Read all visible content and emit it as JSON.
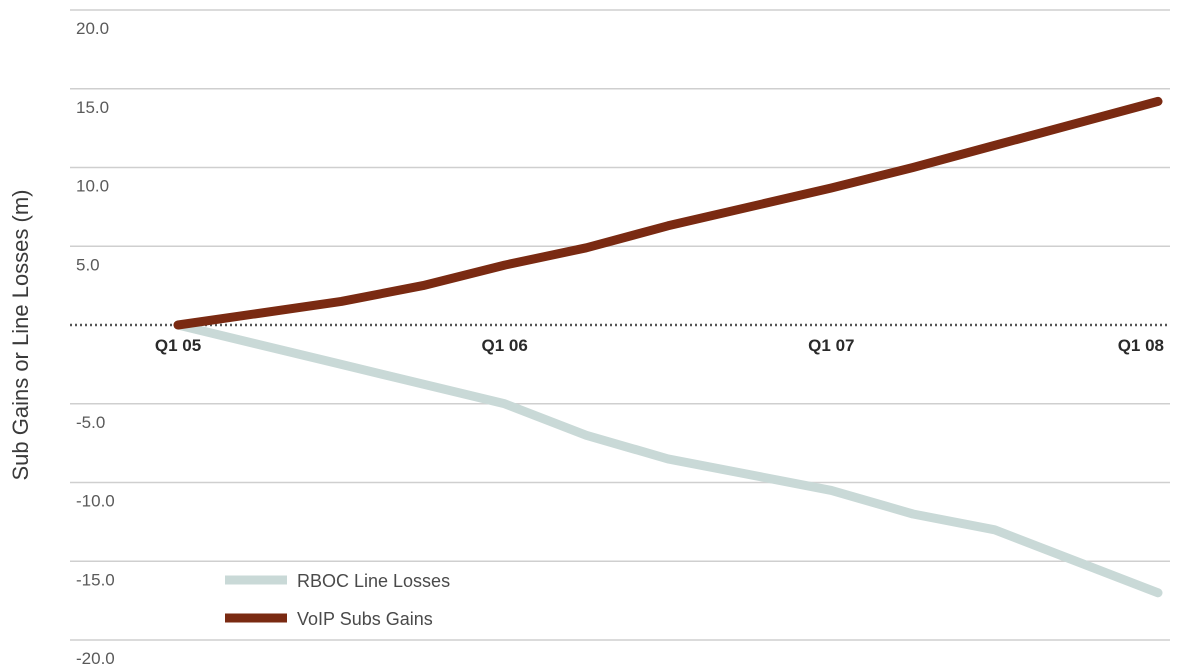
{
  "chart_data": {
    "type": "line",
    "ylabel": "Sub Gains or Line Losses (m)",
    "xlabel": "",
    "ylim": [
      -20,
      20
    ],
    "y_ticks": [
      "20.0",
      "15.0",
      "10.0",
      "5.0",
      "-5.0",
      "-10.0",
      "-15.0",
      "-20.0"
    ],
    "x_ticks": [
      "Q1 05",
      "Q1 06",
      "Q1 07",
      "Q1 08"
    ],
    "grid": true,
    "legend_position": "bottom-left",
    "series": [
      {
        "name": "RBOC Line Losses",
        "color": "#c9d9d7",
        "points": [
          {
            "x": 0,
            "y": 0
          },
          {
            "x": 0.5,
            "y": -2.5
          },
          {
            "x": 1.0,
            "y": -5.0
          },
          {
            "x": 1.25,
            "y": -7.0
          },
          {
            "x": 1.5,
            "y": -8.5
          },
          {
            "x": 2.0,
            "y": -10.5
          },
          {
            "x": 2.25,
            "y": -12.0
          },
          {
            "x": 2.5,
            "y": -13.0
          },
          {
            "x": 2.75,
            "y": -15.0
          },
          {
            "x": 3.0,
            "y": -17.0
          }
        ]
      },
      {
        "name": "VoIP Subs Gains",
        "color": "#7a2a12",
        "points": [
          {
            "x": 0,
            "y": 0
          },
          {
            "x": 0.5,
            "y": 1.5
          },
          {
            "x": 0.75,
            "y": 2.5
          },
          {
            "x": 1.0,
            "y": 3.8
          },
          {
            "x": 1.25,
            "y": 4.9
          },
          {
            "x": 1.5,
            "y": 6.3
          },
          {
            "x": 2.0,
            "y": 8.7
          },
          {
            "x": 2.25,
            "y": 10.0
          },
          {
            "x": 2.5,
            "y": 11.4
          },
          {
            "x": 3.0,
            "y": 14.2
          }
        ]
      }
    ]
  }
}
